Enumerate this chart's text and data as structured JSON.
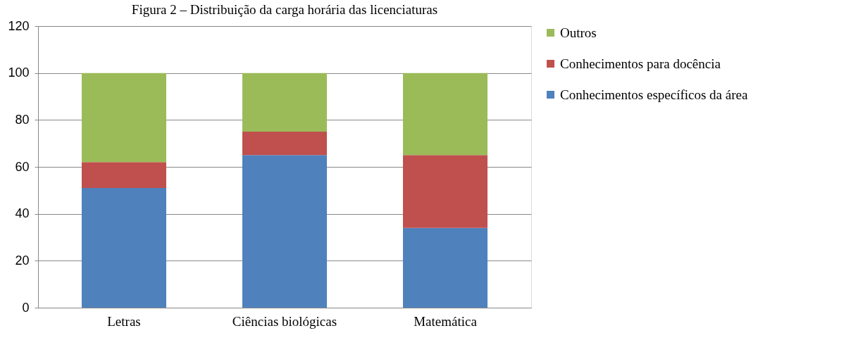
{
  "chart_data": {
    "type": "bar",
    "stacked": true,
    "title": "Figura 2 – Distribuição da carga horária das licenciaturas",
    "categories": [
      "Letras",
      "Ciências biológicas",
      "Matemática"
    ],
    "series": [
      {
        "name": "Conhecimentos específicos da área",
        "color": "#4f81bd",
        "values": [
          51,
          65,
          34
        ]
      },
      {
        "name": "Conhecimentos para docência",
        "color": "#c0504d",
        "values": [
          11,
          10,
          31
        ]
      },
      {
        "name": "Outros",
        "color": "#9bbb59",
        "values": [
          38,
          25,
          35
        ]
      }
    ],
    "ylim": [
      0,
      120
    ],
    "yticks": [
      0,
      20,
      40,
      60,
      80,
      100,
      120
    ],
    "grid": "y",
    "legend": "right"
  }
}
